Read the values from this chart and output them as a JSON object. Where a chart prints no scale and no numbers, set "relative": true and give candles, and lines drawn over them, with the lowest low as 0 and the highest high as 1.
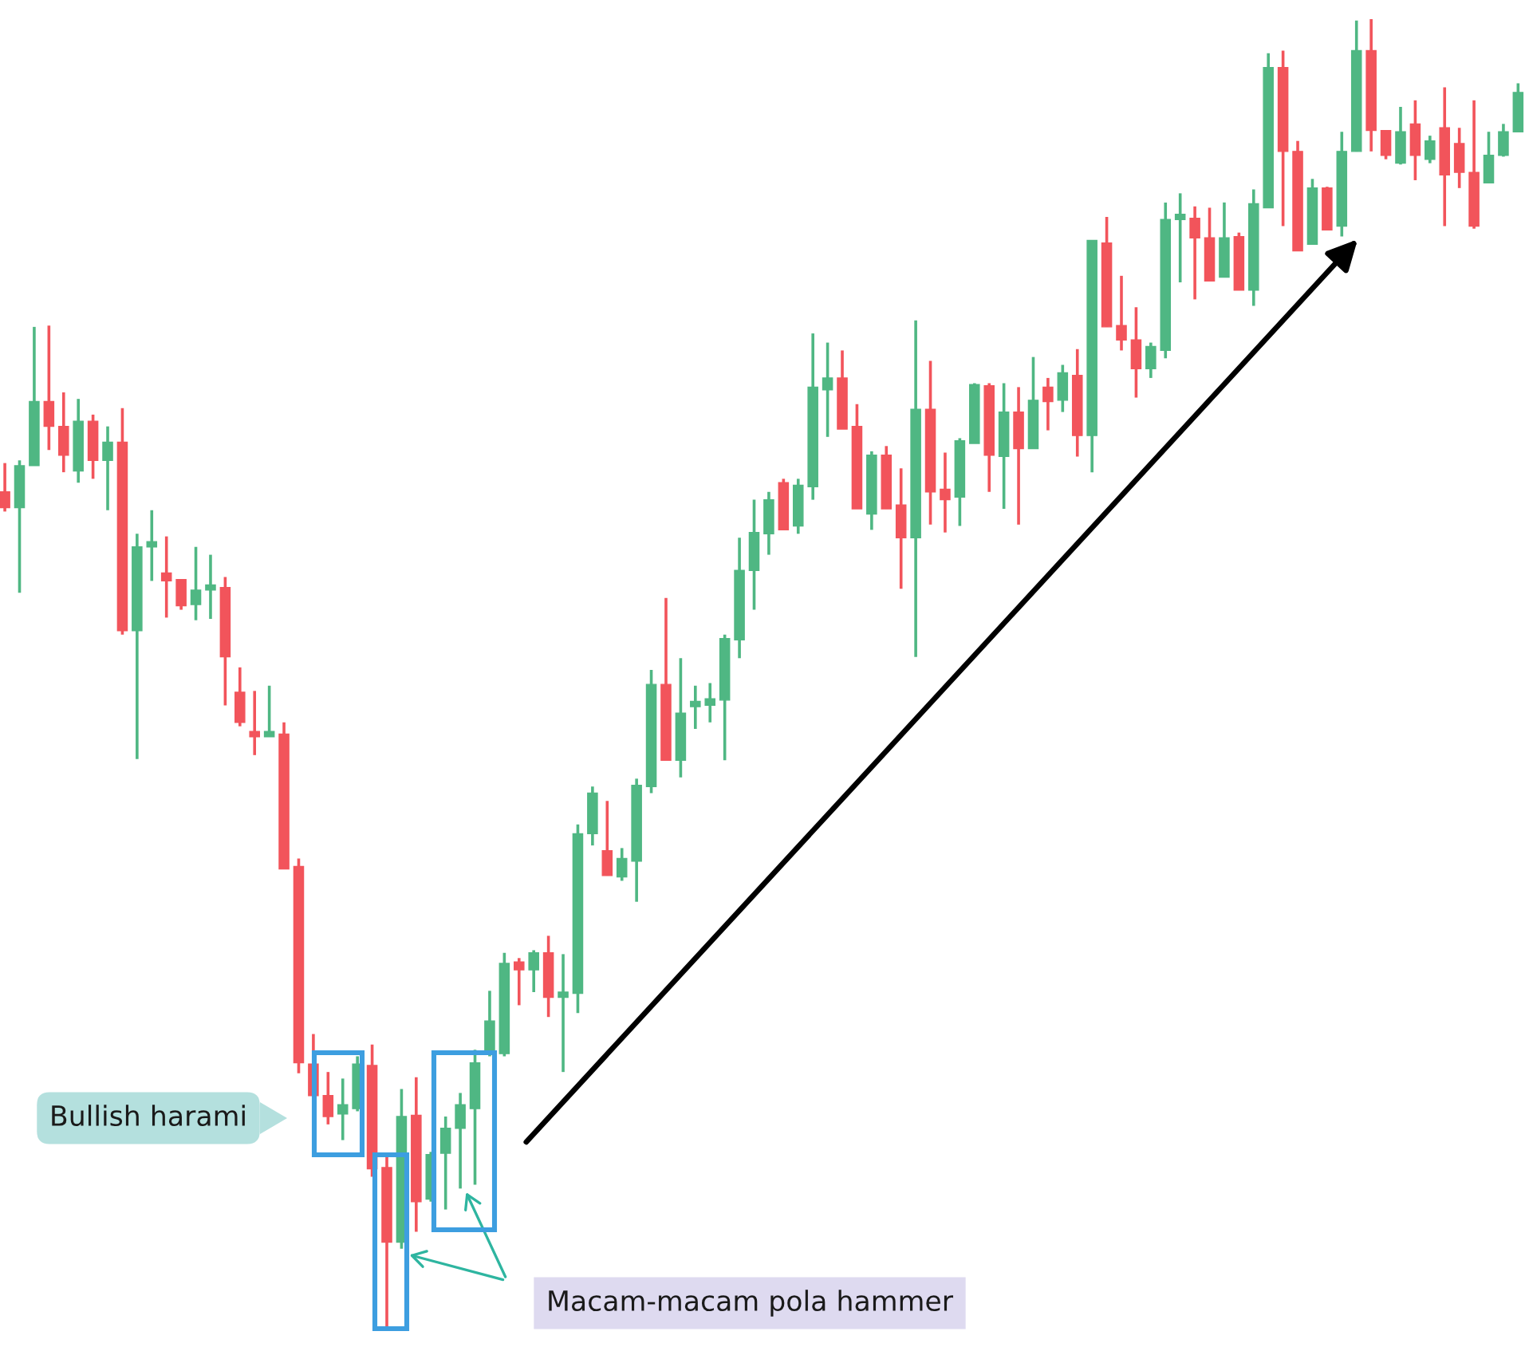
{
  "chart_data": {
    "type": "candlestick",
    "relative": true,
    "categories": [
      null,
      null,
      null,
      null,
      null,
      null,
      null,
      null,
      null,
      null,
      null,
      null,
      null,
      null,
      null,
      null,
      null,
      null,
      null,
      null,
      null,
      null,
      null,
      null,
      null,
      null,
      null,
      null,
      null,
      null,
      null,
      null,
      null,
      null,
      null,
      null,
      null,
      null,
      null,
      null,
      null,
      null,
      null,
      null,
      null,
      null,
      null,
      null,
      null,
      null,
      null,
      null,
      null,
      null,
      null,
      null,
      null,
      null,
      null,
      null,
      null,
      null,
      null,
      null,
      null,
      null,
      null,
      null,
      null,
      null,
      null,
      null,
      null,
      null,
      null,
      null,
      null,
      null,
      null,
      null,
      null,
      null,
      null,
      null,
      null,
      null,
      null,
      null,
      null,
      null,
      null,
      null,
      null,
      null,
      null,
      null,
      null,
      null,
      null,
      null,
      null,
      null,
      null,
      null
    ],
    "ohlc": [
      [
        0.639,
        0.661,
        0.624,
        0.627
      ],
      [
        0.627,
        0.663,
        0.562,
        0.659
      ],
      [
        0.659,
        0.765,
        0.659,
        0.708
      ],
      [
        0.708,
        0.766,
        0.671,
        0.689
      ],
      [
        0.689,
        0.715,
        0.654,
        0.667
      ],
      [
        0.655,
        0.71,
        0.646,
        0.693
      ],
      [
        0.693,
        0.698,
        0.649,
        0.663
      ],
      [
        0.663,
        0.689,
        0.625,
        0.677
      ],
      [
        0.677,
        0.703,
        0.53,
        0.533
      ],
      [
        0.533,
        0.607,
        0.435,
        0.597
      ],
      [
        0.597,
        0.625,
        0.571,
        0.599
      ],
      [
        0.577,
        0.605,
        0.543,
        0.571
      ],
      [
        0.572,
        0.572,
        0.549,
        0.552
      ],
      [
        0.553,
        0.597,
        0.541,
        0.564
      ],
      [
        0.564,
        0.591,
        0.542,
        0.565
      ],
      [
        0.566,
        0.574,
        0.476,
        0.513
      ],
      [
        0.486,
        0.505,
        0.46,
        0.463
      ],
      [
        0.456,
        0.487,
        0.438,
        0.452
      ],
      [
        0.452,
        0.491,
        0.452,
        0.456
      ],
      [
        0.454,
        0.463,
        0.351,
        0.351
      ],
      [
        0.353,
        0.359,
        0.195,
        0.203
      ],
      [
        0.202,
        0.225,
        0.178,
        0.178
      ],
      [
        0.178,
        0.196,
        0.156,
        0.162
      ],
      [
        0.164,
        0.191,
        0.144,
        0.171
      ],
      [
        0.168,
        0.208,
        0.166,
        0.202
      ],
      [
        0.201,
        0.217,
        0.116,
        0.122
      ],
      [
        0.123,
        0.132,
        0,
        0.066
      ],
      [
        0.066,
        0.183,
        0.061,
        0.162
      ],
      [
        0.163,
        0.192,
        0.074,
        0.097
      ],
      [
        0.099,
        0.135,
        0.097,
        0.133
      ],
      [
        0.134,
        0.162,
        0.091,
        0.153
      ],
      [
        0.153,
        0.18,
        0.107,
        0.171
      ],
      [
        0.168,
        0.213,
        0.11,
        0.203
      ],
      [
        0.211,
        0.258,
        0.208,
        0.235
      ],
      [
        0.21,
        0.287,
        0.208,
        0.279
      ],
      [
        0.28,
        0.283,
        0.247,
        0.274
      ],
      [
        0.274,
        0.289,
        0.257,
        0.287
      ],
      [
        0.287,
        0.3,
        0.238,
        0.253
      ],
      [
        0.253,
        0.286,
        0.196,
        0.257
      ],
      [
        0.256,
        0.385,
        0.241,
        0.378
      ],
      [
        0.378,
        0.414,
        0.369,
        0.409
      ],
      [
        0.365,
        0.403,
        0.346,
        0.346
      ],
      [
        0.345,
        0.367,
        0.342,
        0.359
      ],
      [
        0.357,
        0.42,
        0.326,
        0.415
      ],
      [
        0.414,
        0.503,
        0.409,
        0.492
      ],
      [
        0.492,
        0.558,
        0.434,
        0.434
      ],
      [
        0.434,
        0.512,
        0.421,
        0.47
      ],
      [
        0.475,
        0.491,
        0.458,
        0.476
      ],
      [
        0.476,
        0.493,
        0.463,
        0.481
      ],
      [
        0.48,
        0.53,
        0.434,
        0.527
      ],
      [
        0.526,
        0.604,
        0.512,
        0.579
      ],
      [
        0.579,
        0.633,
        0.549,
        0.608
      ],
      [
        0.607,
        0.639,
        0.591,
        0.633
      ],
      [
        0.646,
        0.649,
        0.61,
        0.61
      ],
      [
        0.613,
        0.649,
        0.607,
        0.644
      ],
      [
        0.643,
        0.76,
        0.633,
        0.719
      ],
      [
        0.717,
        0.753,
        0.681,
        0.726
      ],
      [
        0.726,
        0.747,
        0.687,
        0.687
      ],
      [
        0.689,
        0.706,
        0.626,
        0.626
      ],
      [
        0.622,
        0.67,
        0.61,
        0.667
      ],
      [
        0.667,
        0.674,
        0.626,
        0.626
      ],
      [
        0.629,
        0.657,
        0.565,
        0.604
      ],
      [
        0.604,
        0.77,
        0.513,
        0.702
      ],
      [
        0.702,
        0.739,
        0.614,
        0.639
      ],
      [
        0.641,
        0.669,
        0.608,
        0.633
      ],
      [
        0.635,
        0.68,
        0.613,
        0.678
      ],
      [
        0.676,
        0.722,
        0.676,
        0.721
      ],
      [
        0.72,
        0.722,
        0.639,
        0.667
      ],
      [
        0.666,
        0.722,
        0.626,
        0.7
      ],
      [
        0.7,
        0.719,
        0.614,
        0.672
      ],
      [
        0.672,
        0.742,
        0.672,
        0.709
      ],
      [
        0.719,
        0.726,
        0.686,
        0.708
      ],
      [
        0.709,
        0.736,
        0.7,
        0.73
      ],
      [
        0.728,
        0.748,
        0.666,
        0.682
      ],
      [
        0.682,
        0.831,
        0.654,
        0.831
      ],
      [
        0.829,
        0.849,
        0.765,
        0.765
      ],
      [
        0.766,
        0.804,
        0.747,
        0.755
      ],
      [
        0.755,
        0.78,
        0.711,
        0.733
      ],
      [
        0.733,
        0.753,
        0.726,
        0.75
      ],
      [
        0.747,
        0.86,
        0.741,
        0.847
      ],
      [
        0.847,
        0.867,
        0.799,
        0.848
      ],
      [
        0.848,
        0.857,
        0.786,
        0.833
      ],
      [
        0.833,
        0.856,
        0.8,
        0.8
      ],
      [
        0.803,
        0.86,
        0.803,
        0.833
      ],
      [
        0.834,
        0.837,
        0.793,
        0.793
      ],
      [
        0.793,
        0.87,
        0.781,
        0.859
      ],
      [
        0.856,
        0.974,
        0.856,
        0.963
      ],
      [
        0.963,
        0.976,
        0.842,
        0.899
      ],
      [
        0.899,
        0.907,
        0.823,
        0.823
      ],
      [
        0.828,
        0.878,
        0.828,
        0.871
      ],
      [
        0.871,
        0.872,
        0.839,
        0.839
      ],
      [
        0.842,
        0.914,
        0.834,
        0.899
      ],
      [
        0.899,
        0.999,
        0.899,
        0.976
      ],
      [
        0.976,
        1.0,
        0.899,
        0.915
      ],
      [
        0.915,
        0.915,
        0.893,
        0.896
      ],
      [
        0.89,
        0.933,
        0.889,
        0.914
      ],
      [
        0.92,
        0.938,
        0.877,
        0.896
      ],
      [
        0.893,
        0.911,
        0.89,
        0.907
      ],
      [
        0.917,
        0.948,
        0.842,
        0.881
      ],
      [
        0.905,
        0.917,
        0.871,
        0.883
      ],
      [
        0.883,
        0.938,
        0.84,
        0.842
      ],
      [
        0.875,
        0.914,
        0.875,
        0.896
      ],
      [
        0.896,
        0.92,
        0.895,
        0.914
      ],
      [
        0.914,
        0.951,
        0.914,
        0.944
      ]
    ],
    "colors": [
      "#f2545b",
      "#4fb783",
      "#4fb783",
      "#f2545b",
      "#f2545b",
      "#4fb783",
      "#f2545b",
      "#4fb783",
      "#f2545b",
      "#4fb783",
      "#4fb783",
      "#f2545b",
      "#f2545b",
      "#4fb783",
      "#4fb783",
      "#f2545b",
      "#f2545b",
      "#f2545b",
      "#4fb783",
      "#f2545b",
      "#f2545b",
      "#f2545b",
      "#f2545b",
      "#4fb783",
      "#4fb783",
      "#f2545b",
      "#f2545b",
      "#4fb783",
      "#f2545b",
      "#4fb783",
      "#4fb783",
      "#4fb783",
      "#4fb783",
      "#4fb783",
      "#4fb783",
      "#f2545b",
      "#4fb783",
      "#f2545b",
      "#4fb783",
      "#4fb783",
      "#4fb783",
      "#f2545b",
      "#4fb783",
      "#4fb783",
      "#4fb783",
      "#f2545b",
      "#4fb783",
      "#4fb783",
      "#4fb783",
      "#4fb783",
      "#4fb783",
      "#4fb783",
      "#4fb783",
      "#f2545b",
      "#4fb783",
      "#4fb783",
      "#4fb783",
      "#f2545b",
      "#f2545b",
      "#4fb783",
      "#f2545b",
      "#f2545b",
      "#4fb783",
      "#f2545b",
      "#f2545b",
      "#4fb783",
      "#4fb783",
      "#f2545b",
      "#4fb783",
      "#f2545b",
      "#4fb783",
      "#f2545b",
      "#4fb783",
      "#f2545b",
      "#4fb783",
      "#f2545b",
      "#f2545b",
      "#f2545b",
      "#4fb783",
      "#4fb783",
      "#4fb783",
      "#f2545b",
      "#f2545b",
      "#4fb783",
      "#f2545b",
      "#4fb783",
      "#4fb783",
      "#f2545b",
      "#f2545b",
      "#4fb783",
      "#f2545b",
      "#4fb783",
      "#4fb783",
      "#f2545b",
      "#f2545b",
      "#4fb783",
      "#f2545b",
      "#4fb783",
      "#f2545b",
      "#f2545b",
      "#f2545b",
      "#4fb783",
      "#4fb783",
      "#4fb783"
    ],
    "annotations": [
      "Bullish harami",
      "Macam-macam pola hammer"
    ]
  }
}
